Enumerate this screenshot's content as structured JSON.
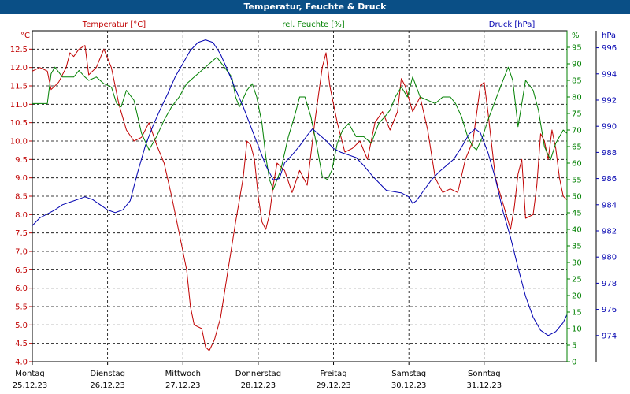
{
  "window": {
    "title": "Temperatur, Feuchte & Druck"
  },
  "chart_data": {
    "type": "line",
    "title": "Temperatur, Feuchte & Druck",
    "grid": true,
    "legend": "top",
    "x_axis": {
      "unit": "days",
      "ticks": [
        {
          "day": "Montag",
          "date": "25.12.23"
        },
        {
          "day": "Dienstag",
          "date": "26.12.23"
        },
        {
          "day": "Mittwoch",
          "date": "27.12.23"
        },
        {
          "day": "Donnerstag",
          "date": "28.12.23"
        },
        {
          "day": "Freitag",
          "date": "29.12.23"
        },
        {
          "day": "Samstag",
          "date": "30.12.23"
        },
        {
          "day": "Sonntag",
          "date": "31.12.23"
        }
      ],
      "xlim": [
        0,
        7.1
      ]
    },
    "axes": {
      "temperature": {
        "label": "Temperatur [°C]",
        "unit_label": "°C",
        "color": "#c00000",
        "ylim": [
          4.0,
          13.0
        ],
        "ticks": [
          "4.0",
          "4.5",
          "5.0",
          "5.5",
          "6.0",
          "6.5",
          "7.0",
          "7.5",
          "8.0",
          "8.5",
          "9.0",
          "9.5",
          "10.0",
          "10.5",
          "11.0",
          "11.5",
          "12.0",
          "12.5"
        ]
      },
      "humidity": {
        "label": "rel. Feuchte [%]",
        "unit_label": "%",
        "color": "#008000",
        "ylim": [
          0,
          100
        ],
        "ticks": [
          "0",
          "5",
          "10",
          "15",
          "20",
          "25",
          "30",
          "35",
          "40",
          "45",
          "50",
          "55",
          "60",
          "65",
          "70",
          "75",
          "80",
          "85",
          "90",
          "95"
        ]
      },
      "pressure": {
        "label": "Druck [hPa]",
        "unit_label": "hPa",
        "color": "#0000b0",
        "ylim": [
          972,
          997.3
        ],
        "ticks": [
          "974",
          "976",
          "978",
          "980",
          "982",
          "984",
          "986",
          "988",
          "990",
          "992",
          "994",
          "996"
        ]
      }
    },
    "series": [
      {
        "name": "Temperatur [°C]",
        "axis": "temperature",
        "color": "#c00000",
        "points": [
          [
            0.0,
            11.9
          ],
          [
            0.1,
            12.0
          ],
          [
            0.2,
            11.9
          ],
          [
            0.25,
            11.4
          ],
          [
            0.35,
            11.6
          ],
          [
            0.45,
            12.0
          ],
          [
            0.5,
            12.4
          ],
          [
            0.55,
            12.3
          ],
          [
            0.62,
            12.5
          ],
          [
            0.7,
            12.6
          ],
          [
            0.75,
            11.8
          ],
          [
            0.85,
            12.0
          ],
          [
            0.95,
            12.5
          ],
          [
            1.05,
            12.0
          ],
          [
            1.15,
            11.0
          ],
          [
            1.25,
            10.3
          ],
          [
            1.35,
            10.0
          ],
          [
            1.45,
            10.1
          ],
          [
            1.55,
            10.5
          ],
          [
            1.65,
            9.9
          ],
          [
            1.75,
            9.4
          ],
          [
            1.85,
            8.5
          ],
          [
            1.95,
            7.5
          ],
          [
            2.05,
            6.5
          ],
          [
            2.1,
            5.5
          ],
          [
            2.15,
            5.0
          ],
          [
            2.25,
            4.9
          ],
          [
            2.3,
            4.4
          ],
          [
            2.35,
            4.3
          ],
          [
            2.42,
            4.6
          ],
          [
            2.5,
            5.2
          ],
          [
            2.6,
            6.5
          ],
          [
            2.7,
            7.8
          ],
          [
            2.8,
            9.0
          ],
          [
            2.85,
            10.0
          ],
          [
            2.9,
            9.9
          ],
          [
            2.95,
            9.5
          ],
          [
            3.0,
            8.5
          ],
          [
            3.05,
            7.8
          ],
          [
            3.1,
            7.6
          ],
          [
            3.15,
            8.0
          ],
          [
            3.2,
            8.8
          ],
          [
            3.25,
            9.4
          ],
          [
            3.35,
            9.2
          ],
          [
            3.45,
            8.6
          ],
          [
            3.55,
            9.2
          ],
          [
            3.65,
            8.8
          ],
          [
            3.75,
            10.5
          ],
          [
            3.85,
            12.0
          ],
          [
            3.9,
            12.4
          ],
          [
            3.95,
            11.5
          ],
          [
            4.05,
            10.5
          ],
          [
            4.15,
            9.7
          ],
          [
            4.25,
            9.8
          ],
          [
            4.35,
            10.0
          ],
          [
            4.45,
            9.5
          ],
          [
            4.55,
            10.5
          ],
          [
            4.65,
            10.8
          ],
          [
            4.75,
            10.3
          ],
          [
            4.85,
            10.8
          ],
          [
            4.9,
            11.7
          ],
          [
            4.95,
            11.5
          ],
          [
            5.05,
            10.8
          ],
          [
            5.15,
            11.2
          ],
          [
            5.25,
            10.3
          ],
          [
            5.35,
            9.0
          ],
          [
            5.45,
            8.6
          ],
          [
            5.55,
            8.7
          ],
          [
            5.65,
            8.6
          ],
          [
            5.75,
            9.5
          ],
          [
            5.85,
            10.0
          ],
          [
            5.95,
            11.5
          ],
          [
            6.0,
            11.6
          ],
          [
            6.05,
            10.8
          ],
          [
            6.15,
            9.0
          ],
          [
            6.25,
            8.3
          ],
          [
            6.35,
            7.6
          ],
          [
            6.4,
            8.2
          ],
          [
            6.45,
            9.1
          ],
          [
            6.5,
            9.5
          ],
          [
            6.55,
            7.9
          ],
          [
            6.65,
            8.0
          ],
          [
            6.7,
            8.8
          ],
          [
            6.75,
            10.2
          ],
          [
            6.8,
            10.0
          ],
          [
            6.85,
            9.5
          ],
          [
            6.9,
            10.3
          ],
          [
            6.95,
            9.8
          ],
          [
            7.0,
            9.0
          ],
          [
            7.05,
            8.5
          ],
          [
            7.1,
            8.4
          ]
        ]
      },
      {
        "name": "rel. Feuchte [%]",
        "axis": "humidity",
        "color": "#008000",
        "points": [
          [
            0.0,
            78
          ],
          [
            0.1,
            78
          ],
          [
            0.2,
            78
          ],
          [
            0.25,
            87
          ],
          [
            0.3,
            89
          ],
          [
            0.4,
            86
          ],
          [
            0.45,
            86
          ],
          [
            0.55,
            86
          ],
          [
            0.62,
            88
          ],
          [
            0.7,
            86
          ],
          [
            0.75,
            85
          ],
          [
            0.85,
            86
          ],
          [
            0.95,
            84
          ],
          [
            1.05,
            83
          ],
          [
            1.12,
            78
          ],
          [
            1.18,
            77
          ],
          [
            1.25,
            82
          ],
          [
            1.35,
            79
          ],
          [
            1.45,
            69
          ],
          [
            1.55,
            64
          ],
          [
            1.65,
            68
          ],
          [
            1.75,
            73
          ],
          [
            1.85,
            77
          ],
          [
            1.95,
            80
          ],
          [
            2.05,
            84
          ],
          [
            2.15,
            86
          ],
          [
            2.25,
            88
          ],
          [
            2.35,
            90
          ],
          [
            2.45,
            92
          ],
          [
            2.55,
            89
          ],
          [
            2.65,
            86
          ],
          [
            2.7,
            80
          ],
          [
            2.75,
            77
          ],
          [
            2.85,
            82
          ],
          [
            2.92,
            84
          ],
          [
            2.98,
            80
          ],
          [
            3.05,
            72
          ],
          [
            3.1,
            62
          ],
          [
            3.15,
            55
          ],
          [
            3.2,
            52
          ],
          [
            3.3,
            58
          ],
          [
            3.4,
            68
          ],
          [
            3.48,
            74
          ],
          [
            3.55,
            80
          ],
          [
            3.62,
            80
          ],
          [
            3.7,
            74
          ],
          [
            3.78,
            65
          ],
          [
            3.85,
            56
          ],
          [
            3.92,
            55
          ],
          [
            3.98,
            58
          ],
          [
            4.05,
            66
          ],
          [
            4.12,
            70
          ],
          [
            4.2,
            72
          ],
          [
            4.3,
            68
          ],
          [
            4.4,
            68
          ],
          [
            4.5,
            66
          ],
          [
            4.6,
            72
          ],
          [
            4.68,
            74
          ],
          [
            4.75,
            76
          ],
          [
            4.82,
            80
          ],
          [
            4.9,
            83
          ],
          [
            4.98,
            80
          ],
          [
            5.05,
            86
          ],
          [
            5.15,
            80
          ],
          [
            5.25,
            79
          ],
          [
            5.35,
            78
          ],
          [
            5.45,
            80
          ],
          [
            5.55,
            80
          ],
          [
            5.62,
            78
          ],
          [
            5.7,
            74
          ],
          [
            5.78,
            68
          ],
          [
            5.85,
            65
          ],
          [
            5.9,
            64
          ],
          [
            5.98,
            68
          ],
          [
            6.05,
            73
          ],
          [
            6.15,
            79
          ],
          [
            6.25,
            85
          ],
          [
            6.32,
            89
          ],
          [
            6.38,
            85
          ],
          [
            6.45,
            71
          ],
          [
            6.5,
            78
          ],
          [
            6.55,
            85
          ],
          [
            6.65,
            82
          ],
          [
            6.72,
            76
          ],
          [
            6.8,
            65
          ],
          [
            6.88,
            61
          ],
          [
            6.95,
            66
          ],
          [
            7.05,
            70
          ],
          [
            7.1,
            69
          ]
        ]
      },
      {
        "name": "Druck [hPa]",
        "axis": "pressure",
        "color": "#0000b0",
        "points": [
          [
            0.0,
            982.4
          ],
          [
            0.1,
            983.0
          ],
          [
            0.2,
            983.3
          ],
          [
            0.3,
            983.6
          ],
          [
            0.4,
            984.0
          ],
          [
            0.5,
            984.2
          ],
          [
            0.6,
            984.4
          ],
          [
            0.7,
            984.6
          ],
          [
            0.8,
            984.4
          ],
          [
            0.9,
            984.0
          ],
          [
            1.0,
            983.6
          ],
          [
            1.1,
            983.4
          ],
          [
            1.2,
            983.6
          ],
          [
            1.3,
            984.3
          ],
          [
            1.4,
            986.5
          ],
          [
            1.5,
            988.5
          ],
          [
            1.6,
            990.0
          ],
          [
            1.7,
            991.3
          ],
          [
            1.8,
            992.5
          ],
          [
            1.9,
            993.8
          ],
          [
            2.0,
            994.8
          ],
          [
            2.1,
            995.8
          ],
          [
            2.2,
            996.4
          ],
          [
            2.3,
            996.6
          ],
          [
            2.4,
            996.4
          ],
          [
            2.5,
            995.5
          ],
          [
            2.6,
            994.2
          ],
          [
            2.7,
            992.8
          ],
          [
            2.8,
            991.5
          ],
          [
            2.9,
            990.0
          ],
          [
            3.0,
            988.5
          ],
          [
            3.1,
            987.0
          ],
          [
            3.2,
            985.9
          ],
          [
            3.28,
            986.0
          ],
          [
            3.35,
            987.2
          ],
          [
            3.45,
            987.8
          ],
          [
            3.55,
            988.5
          ],
          [
            3.65,
            989.3
          ],
          [
            3.72,
            989.8
          ],
          [
            3.8,
            989.4
          ],
          [
            3.9,
            988.9
          ],
          [
            4.0,
            988.3
          ],
          [
            4.1,
            988.0
          ],
          [
            4.2,
            987.8
          ],
          [
            4.3,
            987.6
          ],
          [
            4.4,
            987.0
          ],
          [
            4.5,
            986.3
          ],
          [
            4.6,
            985.7
          ],
          [
            4.7,
            985.1
          ],
          [
            4.8,
            985.0
          ],
          [
            4.9,
            984.9
          ],
          [
            5.0,
            984.6
          ],
          [
            5.05,
            984.1
          ],
          [
            5.1,
            984.3
          ],
          [
            5.2,
            985.1
          ],
          [
            5.3,
            985.9
          ],
          [
            5.4,
            986.5
          ],
          [
            5.5,
            987.0
          ],
          [
            5.6,
            987.5
          ],
          [
            5.7,
            988.4
          ],
          [
            5.8,
            989.4
          ],
          [
            5.88,
            989.8
          ],
          [
            5.95,
            989.5
          ],
          [
            6.05,
            988.0
          ],
          [
            6.15,
            986.0
          ],
          [
            6.25,
            983.5
          ],
          [
            6.35,
            981.5
          ],
          [
            6.45,
            979.2
          ],
          [
            6.55,
            977.0
          ],
          [
            6.65,
            975.4
          ],
          [
            6.75,
            974.4
          ],
          [
            6.85,
            974.0
          ],
          [
            6.95,
            974.3
          ],
          [
            7.05,
            975.0
          ],
          [
            7.1,
            975.6
          ]
        ]
      }
    ]
  }
}
